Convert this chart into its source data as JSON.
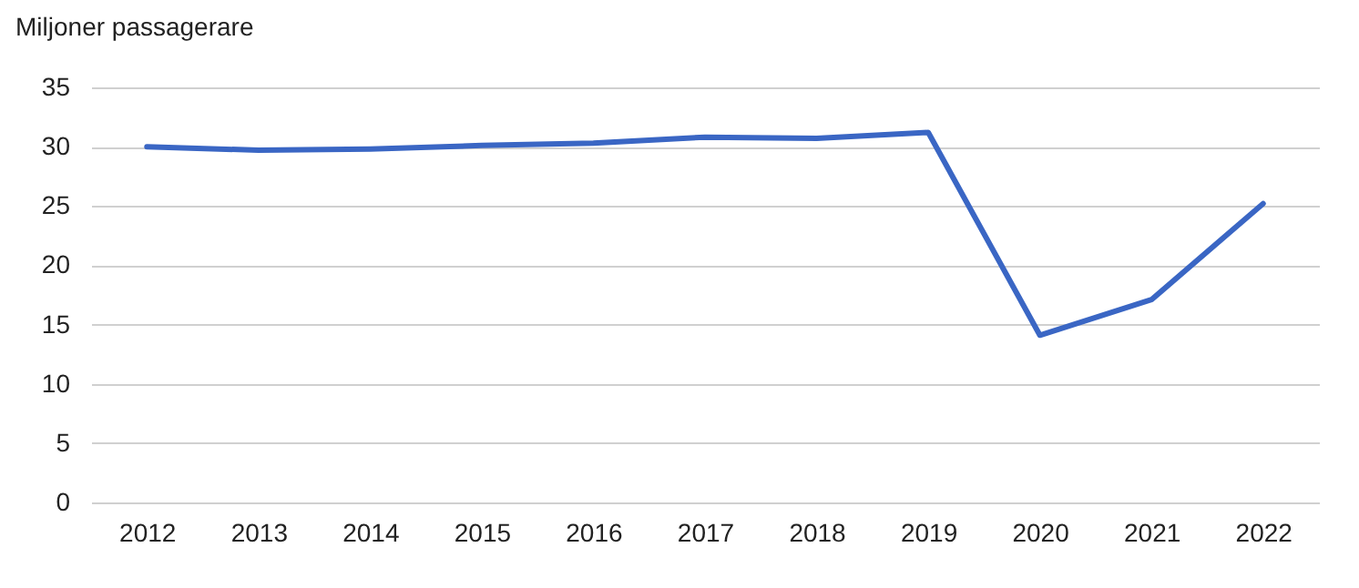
{
  "chart_data": {
    "type": "line",
    "ylabel": "Miljoner passagerare",
    "categories": [
      "2012",
      "2013",
      "2014",
      "2015",
      "2016",
      "2017",
      "2018",
      "2019",
      "2020",
      "2021",
      "2022"
    ],
    "series": [
      {
        "color": "#3a66c4",
        "values": [
          30.0,
          29.7,
          29.8,
          30.1,
          30.3,
          30.8,
          30.7,
          31.2,
          14.1,
          17.1,
          25.2
        ]
      }
    ],
    "ylim": [
      0,
      35
    ],
    "yticks": [
      0,
      5,
      10,
      15,
      20,
      25,
      30,
      35
    ],
    "grid": "y",
    "marker": "none",
    "line_style": "solid"
  }
}
